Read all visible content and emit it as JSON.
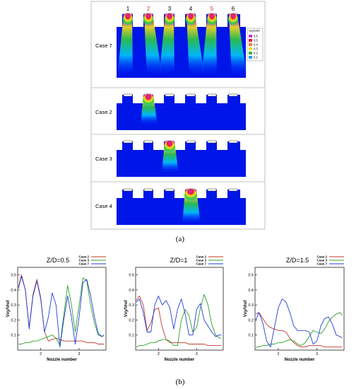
{
  "panel_a": {
    "nozzle_numbers": [
      "1",
      "2",
      "3",
      "4",
      "5",
      "6"
    ],
    "nozzle_number_colors": [
      "#000000",
      "#c0392b",
      "#000000",
      "#000000",
      "#c0392b",
      "#000000"
    ],
    "cases": [
      "Case 7",
      "Case 2",
      "Case 3",
      "Case 4"
    ],
    "legend_title": "Vxy/Vref",
    "legend_levels": [
      "0.6",
      "0.5",
      "0.4",
      "0.3",
      "0.2",
      "0.1"
    ],
    "legend_colors": [
      "#cc33cc",
      "#e6194b",
      "#f58231",
      "#ffe119",
      "#3cb44b",
      "#1fa0ff"
    ],
    "caption": "(a)"
  },
  "panel_b": {
    "caption": "(b)"
  },
  "chart_data": [
    {
      "type": "line",
      "title": "Z/D=0.5",
      "xlabel": "Nozzle number",
      "ylabel": "Vxy/Vref",
      "xlim": [
        1.4,
        3.7
      ],
      "ylim": [
        0,
        0.55
      ],
      "xticks": [
        "2",
        "3"
      ],
      "yticks": [
        "0.1",
        "0.2",
        "0.3",
        "0.4",
        "0.5"
      ],
      "legend_position": "top-right",
      "series": [
        {
          "name": "Case 2",
          "color": "#c0392b",
          "x": [
            1.42,
            1.5,
            1.6,
            1.7,
            1.8,
            1.9,
            2.0,
            2.1,
            2.2,
            2.3,
            2.4,
            2.5,
            2.6,
            2.7,
            2.8,
            2.9,
            3.0,
            3.1,
            3.2,
            3.3,
            3.4,
            3.5,
            3.6,
            3.65
          ],
          "y": [
            0.42,
            0.5,
            0.4,
            0.15,
            0.37,
            0.47,
            0.35,
            0.12,
            0.06,
            0.07,
            0.08,
            0.07,
            0.06,
            0.06,
            0.06,
            0.06,
            0.06,
            0.06,
            0.05,
            0.05,
            0.05,
            0.04,
            0.04,
            0.04
          ]
        },
        {
          "name": "Case 3",
          "color": "#2ca02c",
          "x": [
            1.42,
            1.5,
            1.6,
            1.7,
            1.8,
            1.9,
            2.0,
            2.1,
            2.2,
            2.3,
            2.4,
            2.5,
            2.6,
            2.7,
            2.8,
            2.9,
            3.0,
            3.1,
            3.2,
            3.3,
            3.4,
            3.5,
            3.6,
            3.65
          ],
          "y": [
            0.04,
            0.04,
            0.05,
            0.05,
            0.06,
            0.06,
            0.07,
            0.08,
            0.09,
            0.1,
            0.08,
            0.03,
            0.23,
            0.43,
            0.3,
            0.12,
            0.3,
            0.48,
            0.46,
            0.3,
            0.18,
            0.1,
            0.09,
            0.1
          ]
        },
        {
          "name": "Case 7",
          "color": "#1f3fd6",
          "x": [
            1.42,
            1.5,
            1.6,
            1.7,
            1.8,
            1.9,
            2.0,
            2.1,
            2.2,
            2.3,
            2.4,
            2.5,
            2.6,
            2.7,
            2.8,
            2.9,
            3.0,
            3.1,
            3.2,
            3.3,
            3.4,
            3.5,
            3.6,
            3.65
          ],
          "y": [
            0.41,
            0.49,
            0.4,
            0.14,
            0.36,
            0.46,
            0.34,
            0.12,
            0.22,
            0.38,
            0.3,
            0.02,
            0.2,
            0.36,
            0.22,
            0.04,
            0.22,
            0.45,
            0.47,
            0.36,
            0.22,
            0.11,
            0.09,
            0.1
          ]
        }
      ]
    },
    {
      "type": "line",
      "title": "Z/D=1",
      "xlabel": "Nozzle number",
      "ylabel": "Vxy/Vref",
      "xlim": [
        1.4,
        3.7
      ],
      "ylim": [
        0,
        0.55
      ],
      "xticks": [
        "2",
        "3"
      ],
      "yticks": [
        "0.1",
        "0.2",
        "0.3",
        "0.4",
        "0.5"
      ],
      "legend_position": "top-right",
      "series": [
        {
          "name": "Case 2",
          "color": "#c0392b",
          "x": [
            1.42,
            1.5,
            1.6,
            1.7,
            1.8,
            1.9,
            2.0,
            2.1,
            2.2,
            2.3,
            2.4,
            2.5,
            2.6,
            2.7,
            2.8,
            2.9,
            3.0,
            3.1,
            3.2,
            3.3,
            3.4,
            3.5,
            3.6,
            3.65
          ],
          "y": [
            0.33,
            0.36,
            0.3,
            0.13,
            0.18,
            0.27,
            0.28,
            0.15,
            0.07,
            0.05,
            0.05,
            0.05,
            0.05,
            0.05,
            0.04,
            0.04,
            0.04,
            0.04,
            0.04,
            0.03,
            0.03,
            0.03,
            0.03,
            0.03
          ]
        },
        {
          "name": "Case 3",
          "color": "#2ca02c",
          "x": [
            1.42,
            1.5,
            1.6,
            1.7,
            1.8,
            1.9,
            2.0,
            2.1,
            2.2,
            2.3,
            2.4,
            2.5,
            2.6,
            2.7,
            2.8,
            2.9,
            3.0,
            3.1,
            3.2,
            3.3,
            3.4,
            3.5,
            3.6,
            3.65
          ],
          "y": [
            0.02,
            0.03,
            0.03,
            0.04,
            0.05,
            0.05,
            0.06,
            0.07,
            0.07,
            0.06,
            0.03,
            0.03,
            0.2,
            0.27,
            0.23,
            0.12,
            0.15,
            0.28,
            0.37,
            0.3,
            0.17,
            0.1,
            0.08,
            0.08
          ]
        },
        {
          "name": "Case 7",
          "color": "#1f3fd6",
          "x": [
            1.42,
            1.5,
            1.6,
            1.7,
            1.8,
            1.9,
            2.0,
            2.1,
            2.2,
            2.3,
            2.4,
            2.5,
            2.6,
            2.7,
            2.8,
            2.9,
            3.0,
            3.1,
            3.2,
            3.3,
            3.4,
            3.5,
            3.6,
            3.65
          ],
          "y": [
            0.32,
            0.34,
            0.25,
            0.12,
            0.12,
            0.3,
            0.36,
            0.3,
            0.33,
            0.28,
            0.14,
            0.27,
            0.34,
            0.24,
            0.1,
            0.1,
            0.27,
            0.31,
            0.2,
            0.16,
            0.12,
            0.09,
            0.1,
            0.1
          ]
        }
      ]
    },
    {
      "type": "line",
      "title": "Z/D=1.5",
      "xlabel": "Nozzle number",
      "ylabel": "Vxy/Vref",
      "xlim": [
        1.4,
        3.7
      ],
      "ylim": [
        0,
        0.55
      ],
      "xticks": [
        "2",
        "3"
      ],
      "yticks": [
        "0.1",
        "0.2",
        "0.3",
        "0.4",
        "0.5"
      ],
      "legend_position": "top-right",
      "series": [
        {
          "name": "Case 2",
          "color": "#c0392b",
          "x": [
            1.42,
            1.5,
            1.6,
            1.7,
            1.8,
            1.9,
            2.0,
            2.1,
            2.2,
            2.3,
            2.4,
            2.5,
            2.6,
            2.7,
            2.8,
            2.9,
            3.0,
            3.1,
            3.2,
            3.3,
            3.4,
            3.5,
            3.6,
            3.65
          ],
          "y": [
            0.24,
            0.25,
            0.21,
            0.17,
            0.15,
            0.14,
            0.13,
            0.13,
            0.12,
            0.08,
            0.05,
            0.03,
            0.02,
            0.02,
            0.03,
            0.03,
            0.03,
            0.03,
            0.02,
            0.02,
            0.02,
            0.02,
            0.02,
            0.02
          ]
        },
        {
          "name": "Case 3",
          "color": "#2ca02c",
          "x": [
            1.42,
            1.5,
            1.6,
            1.7,
            1.8,
            1.9,
            2.0,
            2.1,
            2.2,
            2.3,
            2.4,
            2.5,
            2.6,
            2.7,
            2.8,
            2.9,
            3.0,
            3.1,
            3.2,
            3.3,
            3.4,
            3.5,
            3.6,
            3.65
          ],
          "y": [
            0.02,
            0.02,
            0.03,
            0.03,
            0.04,
            0.04,
            0.05,
            0.05,
            0.06,
            0.07,
            0.06,
            0.04,
            0.03,
            0.05,
            0.09,
            0.13,
            0.12,
            0.11,
            0.14,
            0.19,
            0.22,
            0.24,
            0.25,
            0.23
          ]
        },
        {
          "name": "Case 7",
          "color": "#1f3fd6",
          "x": [
            1.42,
            1.5,
            1.6,
            1.7,
            1.8,
            1.9,
            2.0,
            2.1,
            2.2,
            2.3,
            2.4,
            2.5,
            2.6,
            2.7,
            2.8,
            2.9,
            3.0,
            3.1,
            3.2,
            3.3,
            3.4,
            3.5,
            3.6,
            3.65
          ],
          "y": [
            0.2,
            0.25,
            0.18,
            0.06,
            0.02,
            0.15,
            0.28,
            0.34,
            0.32,
            0.25,
            0.16,
            0.13,
            0.13,
            0.13,
            0.12,
            0.04,
            0.06,
            0.16,
            0.21,
            0.22,
            0.17,
            0.1,
            0.09,
            0.08
          ]
        }
      ]
    }
  ]
}
